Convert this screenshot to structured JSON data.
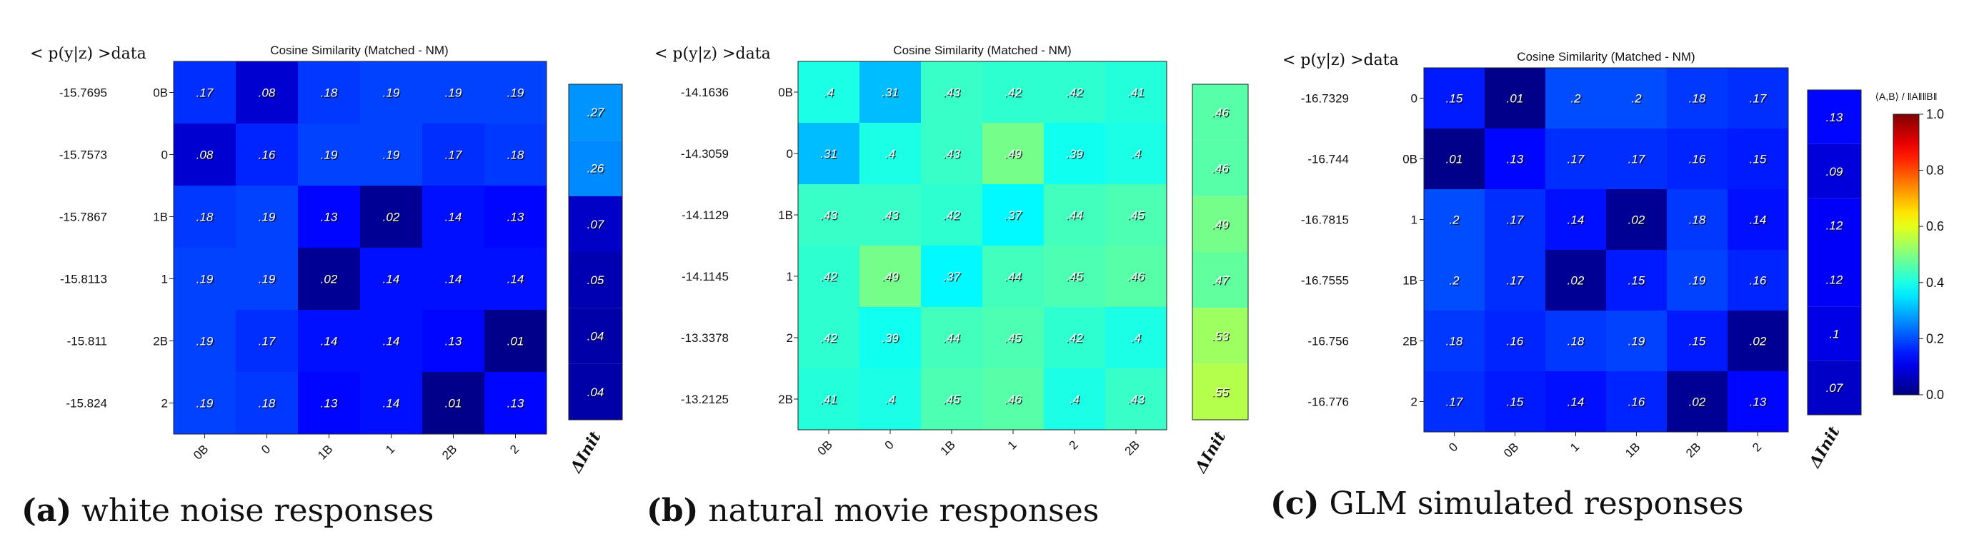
{
  "chart_data": [
    {
      "type": "heatmap",
      "title": "Cosine Similarity (Matched - NM)",
      "row_header": "< p(y|z) >data",
      "row_values": [
        "-15.7695",
        "-15.7573",
        "-15.7867",
        "-15.8113",
        "-15.811",
        "-15.824"
      ],
      "y_categories": [
        "0B",
        "0",
        "1B",
        "1",
        "2B",
        "2"
      ],
      "x_categories": [
        "0B",
        "0",
        "1B",
        "1",
        "2B",
        "2"
      ],
      "values": [
        [
          0.17,
          0.08,
          0.18,
          0.19,
          0.19,
          0.19
        ],
        [
          0.08,
          0.16,
          0.19,
          0.19,
          0.17,
          0.18
        ],
        [
          0.18,
          0.19,
          0.13,
          0.02,
          0.14,
          0.13
        ],
        [
          0.19,
          0.19,
          0.02,
          0.14,
          0.14,
          0.14
        ],
        [
          0.19,
          0.17,
          0.14,
          0.14,
          0.13,
          0.01
        ],
        [
          0.19,
          0.18,
          0.13,
          0.14,
          0.01,
          0.13
        ]
      ],
      "labels": [
        [
          ".17",
          ".08",
          ".18",
          ".19",
          ".19",
          ".19"
        ],
        [
          ".08",
          ".16",
          ".19",
          ".19",
          ".17",
          ".18"
        ],
        [
          ".18",
          ".19",
          ".13",
          ".02",
          ".14",
          ".13"
        ],
        [
          ".19",
          ".19",
          ".02",
          ".14",
          ".14",
          ".14"
        ],
        [
          ".19",
          ".17",
          ".14",
          ".14",
          ".13",
          ".01"
        ],
        [
          ".19",
          ".18",
          ".13",
          ".14",
          ".01",
          ".13"
        ]
      ],
      "delta_label": "ΔInit",
      "delta_values": [
        0.27,
        0.26,
        0.07,
        0.05,
        0.04,
        0.04
      ],
      "delta_labels": [
        ".27",
        ".26",
        ".07",
        ".05",
        ".04",
        ".04"
      ],
      "caption_letter": "(a)",
      "caption_text": "white noise responses"
    },
    {
      "type": "heatmap",
      "title": "Cosine Similarity (Matched - NM)",
      "row_header": "< p(y|z) >data",
      "row_values": [
        "-14.1636",
        "-14.3059",
        "-14.1129",
        "-14.1145",
        "-13.3378",
        "-13.2125"
      ],
      "y_categories": [
        "0B",
        "0",
        "1B",
        "1",
        "2",
        "2B"
      ],
      "x_categories": [
        "0B",
        "0",
        "1B",
        "1",
        "2",
        "2B"
      ],
      "values": [
        [
          0.4,
          0.31,
          0.43,
          0.42,
          0.42,
          0.41
        ],
        [
          0.31,
          0.4,
          0.43,
          0.49,
          0.39,
          0.4
        ],
        [
          0.43,
          0.43,
          0.42,
          0.37,
          0.44,
          0.45
        ],
        [
          0.42,
          0.49,
          0.37,
          0.44,
          0.45,
          0.46
        ],
        [
          0.42,
          0.39,
          0.44,
          0.45,
          0.42,
          0.4
        ],
        [
          0.41,
          0.4,
          0.45,
          0.46,
          0.4,
          0.43
        ]
      ],
      "labels": [
        [
          ".4",
          ".31",
          ".43",
          ".42",
          ".42",
          ".41"
        ],
        [
          ".31",
          ".4",
          ".43",
          ".49",
          ".39",
          ".4"
        ],
        [
          ".43",
          ".43",
          ".42",
          ".37",
          ".44",
          ".45"
        ],
        [
          ".42",
          ".49",
          ".37",
          ".44",
          ".45",
          ".46"
        ],
        [
          ".42",
          ".39",
          ".44",
          ".45",
          ".42",
          ".4"
        ],
        [
          ".41",
          ".4",
          ".45",
          ".46",
          ".4",
          ".43"
        ]
      ],
      "delta_label": "ΔInit",
      "delta_values": [
        0.46,
        0.46,
        0.49,
        0.47,
        0.53,
        0.55
      ],
      "delta_labels": [
        ".46",
        ".46",
        ".49",
        ".47",
        ".53",
        ".55"
      ],
      "caption_letter": "(b)",
      "caption_text": "natural movie responses"
    },
    {
      "type": "heatmap",
      "title": "Cosine Similarity (Matched - NM)",
      "row_header": "< p(y|z) >data",
      "row_values": [
        "-16.7329",
        "-16.744",
        "-16.7815",
        "-16.7555",
        "-16.756",
        "-16.776"
      ],
      "y_categories": [
        "0",
        "0B",
        "1",
        "1B",
        "2B",
        "2"
      ],
      "x_categories": [
        "0",
        "0B",
        "1",
        "1B",
        "2B",
        "2"
      ],
      "values": [
        [
          0.15,
          0.01,
          0.2,
          0.2,
          0.18,
          0.17
        ],
        [
          0.01,
          0.13,
          0.17,
          0.17,
          0.16,
          0.15
        ],
        [
          0.2,
          0.17,
          0.14,
          0.02,
          0.18,
          0.14
        ],
        [
          0.2,
          0.17,
          0.02,
          0.15,
          0.19,
          0.16
        ],
        [
          0.18,
          0.16,
          0.18,
          0.19,
          0.15,
          0.02
        ],
        [
          0.17,
          0.15,
          0.14,
          0.16,
          0.02,
          0.13
        ]
      ],
      "labels": [
        [
          ".15",
          ".01",
          ".2",
          ".2",
          ".18",
          ".17"
        ],
        [
          ".01",
          ".13",
          ".17",
          ".17",
          ".16",
          ".15"
        ],
        [
          ".2",
          ".17",
          ".14",
          ".02",
          ".18",
          ".14"
        ],
        [
          ".2",
          ".17",
          ".02",
          ".15",
          ".19",
          ".16"
        ],
        [
          ".18",
          ".16",
          ".18",
          ".19",
          ".15",
          ".02"
        ],
        [
          ".17",
          ".15",
          ".14",
          ".16",
          ".02",
          ".13"
        ]
      ],
      "delta_label": "ΔInit",
      "delta_values": [
        0.13,
        0.09,
        0.12,
        0.12,
        0.1,
        0.07
      ],
      "delta_labels": [
        ".13",
        ".09",
        ".12",
        ".12",
        ".1",
        ".07"
      ],
      "caption_letter": "(c)",
      "caption_text": "GLM simulated responses"
    }
  ],
  "colorbar": {
    "label": "⟨A,B⟩ / ‖A‖‖B‖",
    "ticks": [
      "0.0",
      "0.2",
      "0.4",
      "0.6",
      "0.8",
      "1.0"
    ],
    "range": [
      0,
      1
    ],
    "colormap": "jet"
  }
}
